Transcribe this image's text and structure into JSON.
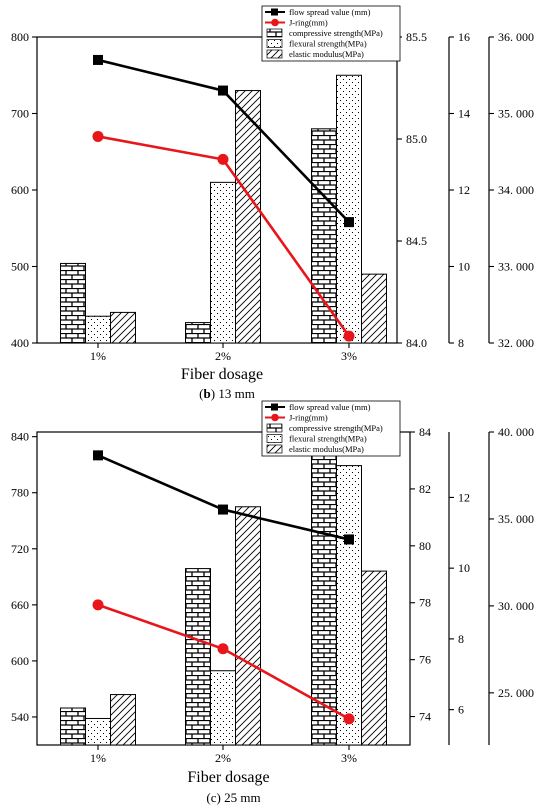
{
  "chart_data": [
    {
      "type": "bar",
      "caption": "(b) 13 mm",
      "caption_letter": "b",
      "caption_rest": " 13 mm",
      "xlabel": "Fiber dosage",
      "categories": [
        "1%",
        "2%",
        "3%"
      ],
      "axes": [
        {
          "side": "left",
          "min": 400,
          "max": 800,
          "ticks": [
            400,
            500,
            600,
            700,
            800
          ],
          "labels": [
            "400",
            "500",
            "600",
            "700",
            "800"
          ]
        },
        {
          "side": "right1",
          "min": 84.0,
          "max": 85.5,
          "ticks": [
            84.0,
            84.5,
            85.0,
            85.5
          ],
          "labels": [
            "84.0",
            "84.5",
            "85.0",
            "85.5"
          ]
        },
        {
          "side": "right2",
          "min": 8,
          "max": 16,
          "ticks": [
            8,
            10,
            12,
            14,
            16
          ],
          "labels": [
            "8",
            "10",
            "12",
            "14",
            "16"
          ]
        },
        {
          "side": "right3",
          "min": 32.0,
          "max": 36.0,
          "ticks": [
            32.0,
            33.0,
            34.0,
            35.0,
            36.0
          ],
          "labels": [
            "32. 000",
            "33. 000",
            "34. 000",
            "35. 000",
            "36. 000"
          ]
        }
      ],
      "series": [
        {
          "name": "flow spread value (mm)",
          "kind": "line",
          "axis": 0,
          "color": "#000000",
          "marker": "square",
          "values": [
            770,
            730,
            558
          ]
        },
        {
          "name": "J-ring(mm)",
          "kind": "line",
          "axis": 0,
          "color": "#e8151b",
          "marker": "circle",
          "values": [
            670,
            640,
            409
          ]
        },
        {
          "name": "compressive strength(MPa)",
          "kind": "bar",
          "axis": 1,
          "pattern": "brick",
          "values": [
            84.39,
            84.1,
            85.05
          ]
        },
        {
          "name": "flexural strength(MPa)",
          "kind": "bar",
          "axis": 2,
          "pattern": "dots",
          "values": [
            8.7,
            12.2,
            15.0
          ]
        },
        {
          "name": "elastic modulus(MPa)",
          "kind": "bar",
          "axis": 3,
          "pattern": "hatch",
          "values": [
            32.4,
            35.3,
            32.9
          ]
        }
      ]
    },
    {
      "type": "bar",
      "caption": "(c) 25 mm",
      "caption_letter": "",
      "caption_rest": "(c) 25 mm",
      "xlabel": "Fiber dosage",
      "categories": [
        "1%",
        "2%",
        "3%"
      ],
      "axes": [
        {
          "side": "left",
          "min": 510,
          "max": 845,
          "ticks": [
            540,
            600,
            660,
            720,
            780,
            840
          ],
          "labels": [
            "540",
            "600",
            "660",
            "720",
            "780",
            "840"
          ]
        },
        {
          "side": "right1",
          "min": 73.0,
          "max": 84.0,
          "ticks": [
            74,
            76,
            78,
            80,
            82,
            84
          ],
          "labels": [
            "74",
            "76",
            "78",
            "80",
            "82",
            "84"
          ]
        },
        {
          "side": "right2",
          "min": 5.0,
          "max": 13.85,
          "ticks": [
            6,
            8,
            10,
            12
          ],
          "labels": [
            "6",
            "8",
            "10",
            "12"
          ]
        },
        {
          "side": "right3",
          "min": 22.0,
          "max": 40.0,
          "ticks": [
            25.0,
            30.0,
            35.0,
            40.0
          ],
          "labels": [
            "25. 000",
            "30. 000",
            "35. 000",
            "40. 000"
          ]
        }
      ],
      "series": [
        {
          "name": "flow spread value (mm)",
          "kind": "line",
          "axis": 0,
          "color": "#000000",
          "marker": "square",
          "values": [
            820,
            762,
            730
          ]
        },
        {
          "name": "J-ring(mm)",
          "kind": "line",
          "axis": 0,
          "color": "#e8151b",
          "marker": "circle",
          "values": [
            660,
            613,
            538
          ]
        },
        {
          "name": "compressive strength(MPa)",
          "kind": "bar",
          "axis": 1,
          "pattern": "brick",
          "values": [
            74.3,
            79.2,
            83.8
          ]
        },
        {
          "name": "flexural strength(MPa)",
          "kind": "bar",
          "axis": 2,
          "pattern": "dots",
          "values": [
            5.75,
            7.1,
            12.9
          ]
        },
        {
          "name": "elastic modulus(MPa)",
          "kind": "bar",
          "axis": 3,
          "pattern": "hatch",
          "values": [
            24.9,
            35.7,
            32.0
          ]
        }
      ]
    }
  ]
}
